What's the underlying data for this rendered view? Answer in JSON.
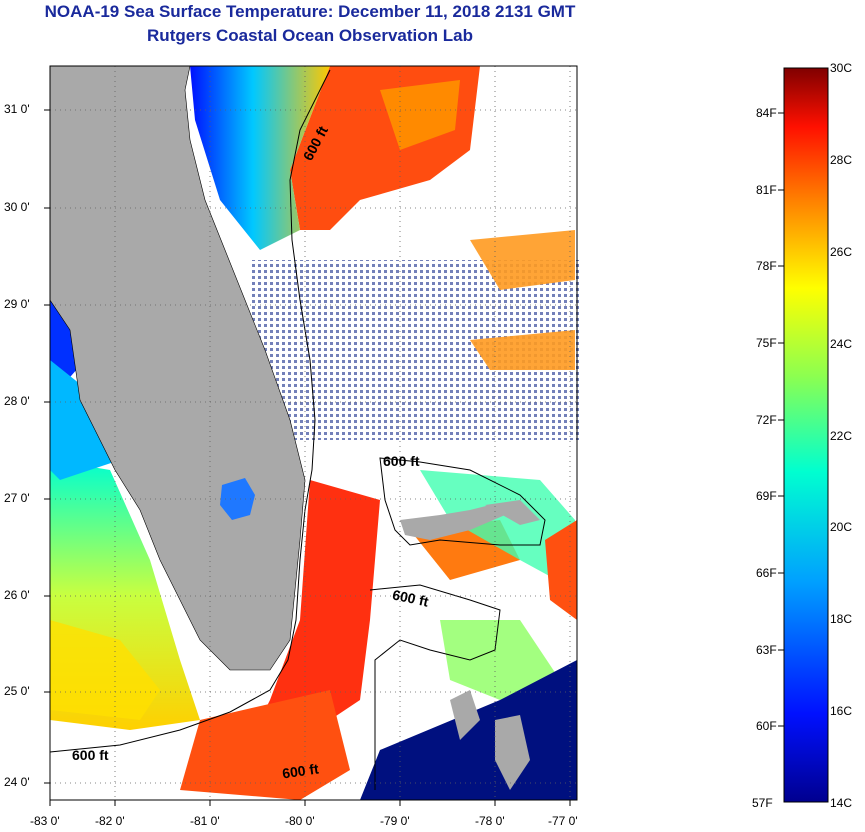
{
  "title": {
    "line1": "NOAA-19 Sea Surface Temperature:  December 11, 2018 2131 GMT",
    "line2": "Rutgers Coastal Ocean Observation Lab"
  },
  "axes": {
    "y_labels": [
      "31 0'",
      "30 0'",
      "29 0'",
      "28 0'",
      "27 0'",
      "26 0'",
      "25 0'",
      "24 0'"
    ],
    "x_labels": [
      "-83 0'",
      "-82 0'",
      "-81 0'",
      "-80 0'",
      "-79 0'",
      "-78 0'",
      "-77 0'"
    ]
  },
  "contours": {
    "label": "600 ft"
  },
  "colorbar": {
    "celsius": [
      "30C",
      "28C",
      "26C",
      "24C",
      "22C",
      "20C",
      "18C",
      "16C",
      "14C"
    ],
    "fahrenheit": [
      "84F",
      "81F",
      "78F",
      "75F",
      "72F",
      "69F",
      "66F",
      "63F",
      "60F",
      "57F"
    ]
  },
  "colors": {
    "land": "#a9a9a9",
    "cloud": "#ffffff",
    "title": "#1a2a9c"
  }
}
